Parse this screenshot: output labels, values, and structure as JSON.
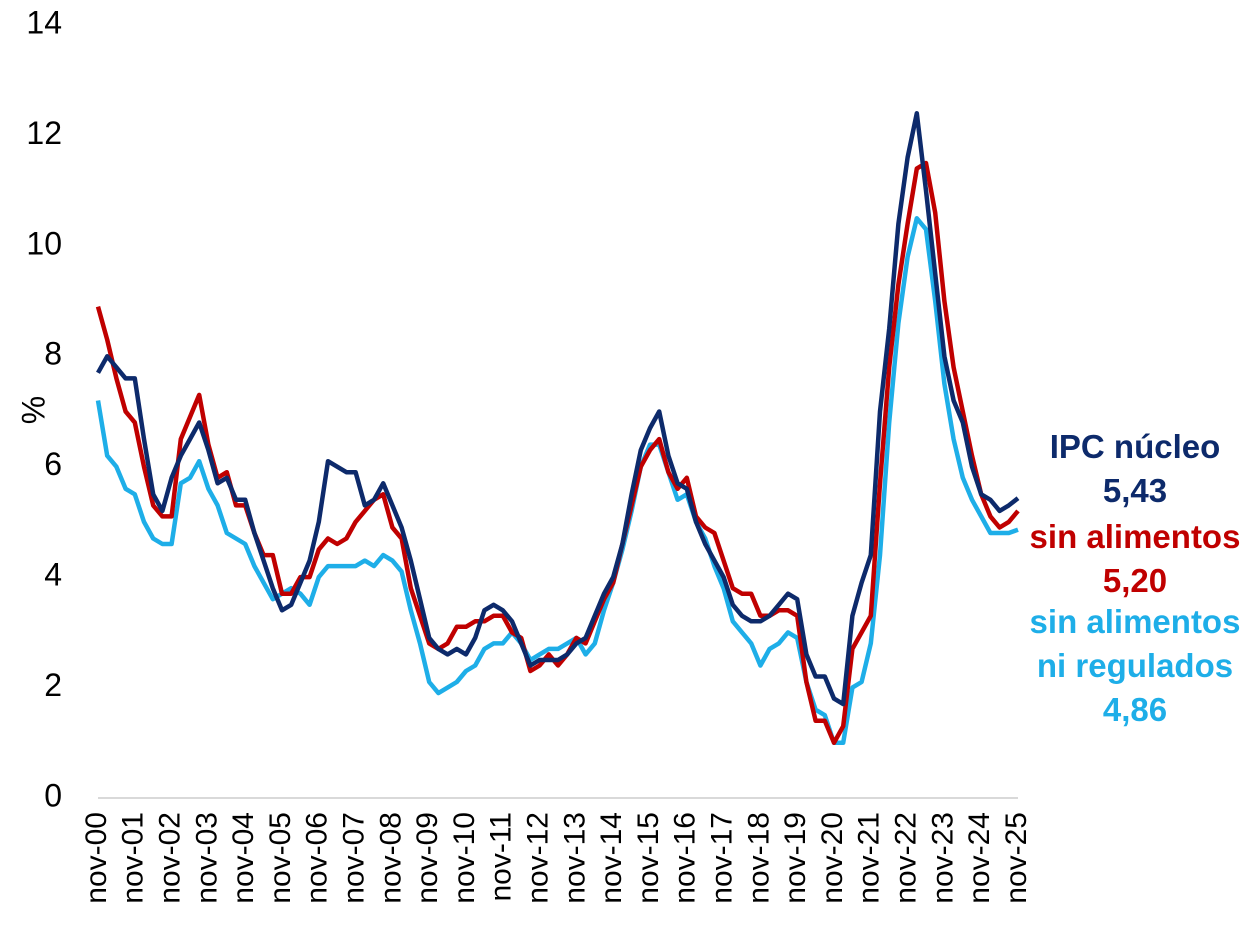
{
  "chart_data": {
    "type": "line",
    "y_label": "%",
    "categories": [
      "nov-00",
      null,
      null,
      null,
      "nov-01",
      null,
      null,
      null,
      "nov-02",
      null,
      null,
      null,
      "nov-03",
      null,
      null,
      null,
      "nov-04",
      null,
      null,
      null,
      "nov-05",
      null,
      null,
      null,
      "nov-06",
      null,
      null,
      null,
      "nov-07",
      null,
      null,
      null,
      "nov-08",
      null,
      null,
      null,
      "nov-09",
      null,
      null,
      null,
      "nov-10",
      null,
      null,
      null,
      "nov-11",
      null,
      null,
      null,
      "nov-12",
      null,
      null,
      null,
      "nov-13",
      null,
      null,
      null,
      "nov-14",
      null,
      null,
      null,
      "nov-15",
      null,
      null,
      null,
      "nov-16",
      null,
      null,
      null,
      "nov-17",
      null,
      null,
      null,
      "nov-18",
      null,
      null,
      null,
      "nov-19",
      null,
      null,
      null,
      "nov-20",
      null,
      null,
      null,
      "nov-21",
      null,
      null,
      null,
      "nov-22",
      null,
      null,
      null,
      "nov-23",
      null,
      null,
      null,
      "nov-24",
      null,
      null,
      null,
      "nov-25"
    ],
    "series": [
      {
        "name": "IPC núcleo",
        "color": "#0d2a6b",
        "value_labels": {
          "100": "5,43"
        },
        "values": [
          7.7,
          8.0,
          7.8,
          7.6,
          7.6,
          6.5,
          5.5,
          5.2,
          5.8,
          6.2,
          6.5,
          6.8,
          6.3,
          5.7,
          5.8,
          5.4,
          5.4,
          4.8,
          4.3,
          3.8,
          3.4,
          3.5,
          3.9,
          4.3,
          5.0,
          6.1,
          6.0,
          5.9,
          5.9,
          5.3,
          5.4,
          5.7,
          5.3,
          4.9,
          4.3,
          3.6,
          2.9,
          2.7,
          2.6,
          2.7,
          2.6,
          2.9,
          3.4,
          3.5,
          3.4,
          3.2,
          2.8,
          2.4,
          2.5,
          2.5,
          2.5,
          2.6,
          2.8,
          2.9,
          3.3,
          3.7,
          4.0,
          4.6,
          5.5,
          6.3,
          6.7,
          7.0,
          6.2,
          5.7,
          5.6,
          5.0,
          4.6,
          4.3,
          4.0,
          3.5,
          3.3,
          3.2,
          3.2,
          3.3,
          3.5,
          3.7,
          3.6,
          2.6,
          2.2,
          2.2,
          1.8,
          1.7,
          3.3,
          3.9,
          4.4,
          7.0,
          8.5,
          10.4,
          11.6,
          12.4,
          11.0,
          9.5,
          8.0,
          7.2,
          6.8,
          6.0,
          5.5,
          5.4,
          5.2,
          5.3,
          5.43
        ]
      },
      {
        "name": "sin alimentos",
        "color": "#c00000",
        "value_labels": {
          "100": "5,20"
        },
        "values": [
          8.9,
          8.3,
          7.6,
          7.0,
          6.8,
          6.0,
          5.3,
          5.1,
          5.1,
          6.5,
          6.9,
          7.3,
          6.4,
          5.8,
          5.9,
          5.3,
          5.3,
          4.8,
          4.4,
          4.4,
          3.7,
          3.7,
          4.0,
          4.0,
          4.5,
          4.7,
          4.6,
          4.7,
          5.0,
          5.2,
          5.4,
          5.5,
          4.9,
          4.7,
          3.8,
          3.3,
          2.8,
          2.7,
          2.8,
          3.1,
          3.1,
          3.2,
          3.2,
          3.3,
          3.3,
          3.0,
          2.9,
          2.3,
          2.4,
          2.6,
          2.4,
          2.6,
          2.9,
          2.8,
          3.2,
          3.6,
          3.9,
          4.6,
          5.3,
          6.0,
          6.3,
          6.5,
          5.9,
          5.6,
          5.8,
          5.1,
          4.9,
          4.8,
          4.3,
          3.8,
          3.7,
          3.7,
          3.3,
          3.3,
          3.4,
          3.4,
          3.3,
          2.1,
          1.4,
          1.4,
          1.0,
          1.3,
          2.7,
          3.0,
          3.3,
          5.7,
          7.8,
          9.3,
          10.4,
          11.4,
          11.5,
          10.6,
          9.0,
          7.8,
          7.0,
          6.2,
          5.5,
          5.1,
          4.9,
          5.0,
          5.2
        ]
      },
      {
        "name": "sin alimentos ni regulados",
        "color": "#1eaee8",
        "value_labels": {
          "100": "4,86"
        },
        "values": [
          7.2,
          6.2,
          6.0,
          5.6,
          5.5,
          5.0,
          4.7,
          4.6,
          4.6,
          5.7,
          5.8,
          6.1,
          5.6,
          5.3,
          4.8,
          4.7,
          4.6,
          4.2,
          3.9,
          3.6,
          3.7,
          3.8,
          3.7,
          3.5,
          4.0,
          4.2,
          4.2,
          4.2,
          4.2,
          4.3,
          4.2,
          4.4,
          4.3,
          4.1,
          3.4,
          2.8,
          2.1,
          1.9,
          2.0,
          2.1,
          2.3,
          2.4,
          2.7,
          2.8,
          2.8,
          3.0,
          2.8,
          2.5,
          2.6,
          2.7,
          2.7,
          2.8,
          2.9,
          2.6,
          2.8,
          3.4,
          3.9,
          4.5,
          5.2,
          6.0,
          6.4,
          6.4,
          5.9,
          5.4,
          5.5,
          5.0,
          4.7,
          4.2,
          3.8,
          3.2,
          3.0,
          2.8,
          2.4,
          2.7,
          2.8,
          3.0,
          2.9,
          2.1,
          1.6,
          1.5,
          1.0,
          1.0,
          2.0,
          2.1,
          2.8,
          4.4,
          6.8,
          8.6,
          9.8,
          10.5,
          10.3,
          9.0,
          7.5,
          6.5,
          5.8,
          5.4,
          5.1,
          4.8,
          4.8,
          4.8,
          4.86
        ]
      }
    ],
    "ylim": [
      0,
      14
    ],
    "yticks": [
      0,
      2,
      4,
      6,
      8,
      10,
      12,
      14
    ],
    "grid": false
  }
}
